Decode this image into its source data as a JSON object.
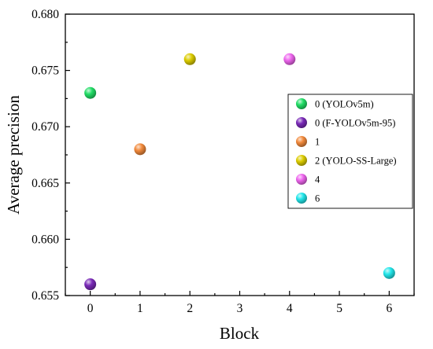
{
  "chart_data": {
    "type": "scatter",
    "title": "",
    "xlabel": "Block",
    "ylabel": "Average precision",
    "xlim": [
      -0.5,
      6.5
    ],
    "ylim": [
      0.655,
      0.68
    ],
    "x_ticks": [
      0,
      1,
      2,
      3,
      4,
      5,
      6
    ],
    "y_ticks": [
      0.655,
      0.66,
      0.665,
      0.67,
      0.675,
      0.68
    ],
    "x_tick_labels": [
      "0",
      "1",
      "2",
      "3",
      "4",
      "5",
      "6"
    ],
    "y_tick_labels": [
      "0.655",
      "0.660",
      "0.665",
      "0.670",
      "0.675",
      "0.680"
    ],
    "grid": false,
    "legend_position": "right",
    "series": [
      {
        "name": "0 (YOLOv5m)",
        "color": "#22dd66",
        "x": [
          0
        ],
        "y": [
          0.673
        ]
      },
      {
        "name": "0 (F-YOLOv5m-95)",
        "color": "#7a2ab8",
        "x": [
          0
        ],
        "y": [
          0.656
        ]
      },
      {
        "name": "1",
        "color": "#f28a3c",
        "x": [
          1
        ],
        "y": [
          0.668
        ]
      },
      {
        "name": "2 (YOLO-SS-Large)",
        "color": "#dccc00",
        "x": [
          2
        ],
        "y": [
          0.676
        ]
      },
      {
        "name": "4",
        "color": "#ee66ee",
        "x": [
          4
        ],
        "y": [
          0.676
        ]
      },
      {
        "name": "6",
        "color": "#22e6ea",
        "x": [
          6
        ],
        "y": [
          0.657
        ]
      }
    ]
  }
}
